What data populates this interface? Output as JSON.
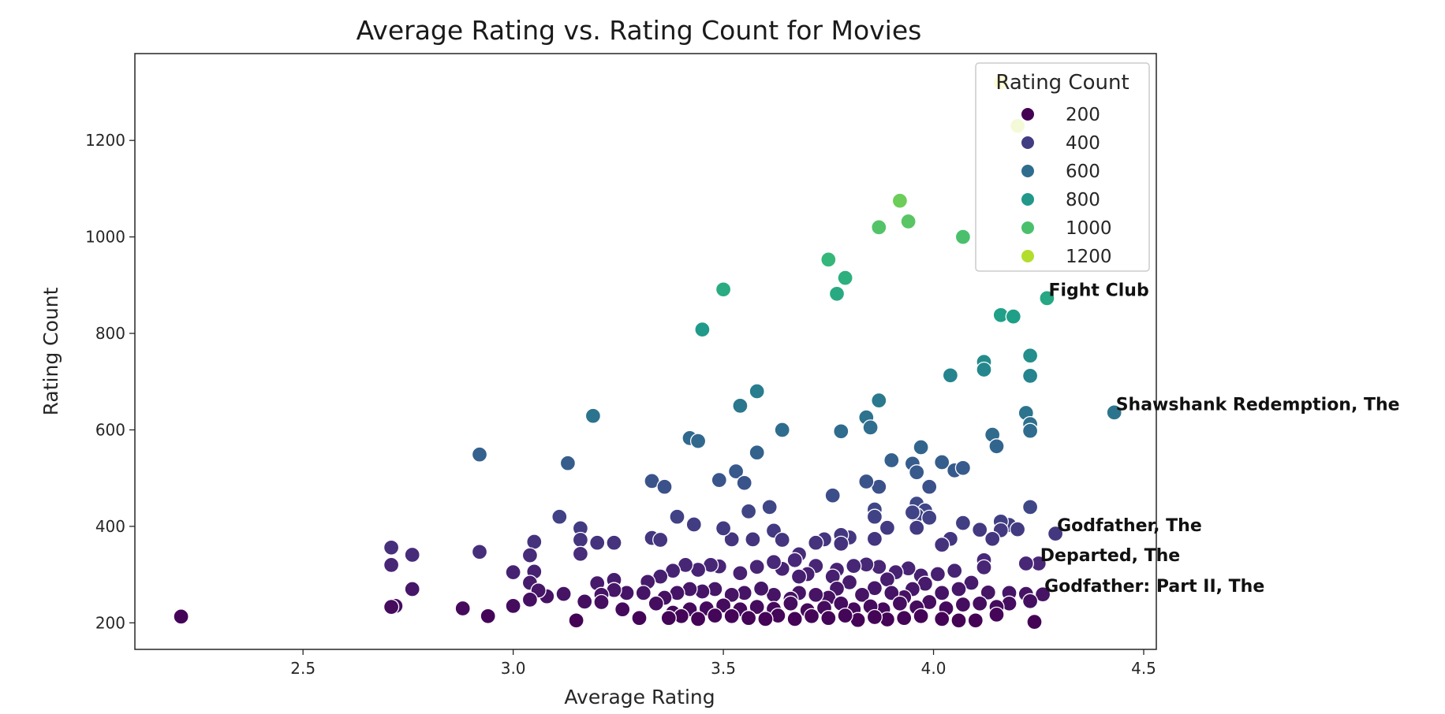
{
  "chart_data": {
    "type": "scatter",
    "title": "Average Rating vs. Rating Count for Movies",
    "xlabel": "Average Rating",
    "ylabel": "Rating Count",
    "xlim": [
      2.1,
      4.53
    ],
    "ylim": [
      145,
      1380
    ],
    "xticks": [
      "2.5",
      "3.0",
      "3.5",
      "4.0",
      "4.5"
    ],
    "yticks": [
      "200",
      "400",
      "600",
      "800",
      "1000",
      "1200"
    ],
    "grid": false,
    "colormap": [
      "#440154",
      "#482878",
      "#3e4a89",
      "#31688e",
      "#26828e",
      "#1f9e89",
      "#35b779",
      "#6ece58",
      "#b5de2b",
      "#fde725"
    ],
    "color_range": [
      200,
      1330
    ],
    "legend": {
      "title": "Rating Count",
      "placement": "top-right",
      "entries": [
        {
          "label": "200",
          "value": 200
        },
        {
          "label": "400",
          "value": 400
        },
        {
          "label": "600",
          "value": 600
        },
        {
          "label": "800",
          "value": 800
        },
        {
          "label": "1000",
          "value": 1000
        },
        {
          "label": "1200",
          "value": 1200
        }
      ]
    },
    "annotations": [
      {
        "text": "Fight Club",
        "x": 4.27,
        "y": 873
      },
      {
        "text": "Shawshank Redemption, The",
        "x": 4.43,
        "y": 636
      },
      {
        "text": "Godfather, The",
        "x": 4.29,
        "y": 385
      },
      {
        "text": "Departed, The",
        "x": 4.25,
        "y": 323
      },
      {
        "text": "Godfather: Part II, The",
        "x": 4.26,
        "y": 259
      }
    ],
    "points": [
      [
        4.16,
        1320
      ],
      [
        4.2,
        1230
      ],
      [
        3.92,
        1075
      ],
      [
        3.87,
        1020
      ],
      [
        3.94,
        1032
      ],
      [
        4.07,
        1000
      ],
      [
        3.75,
        953
      ],
      [
        3.79,
        915
      ],
      [
        3.77,
        882
      ],
      [
        3.5,
        891
      ],
      [
        3.45,
        808
      ],
      [
        4.27,
        873
      ],
      [
        4.16,
        838
      ],
      [
        4.19,
        835
      ],
      [
        4.23,
        754
      ],
      [
        4.12,
        741
      ],
      [
        4.12,
        725
      ],
      [
        4.04,
        713
      ],
      [
        4.23,
        712
      ],
      [
        4.43,
        636
      ],
      [
        4.22,
        635
      ],
      [
        4.23,
        612
      ],
      [
        4.23,
        598
      ],
      [
        4.14,
        590
      ],
      [
        4.15,
        566
      ],
      [
        3.58,
        680
      ],
      [
        3.87,
        661
      ],
      [
        3.54,
        650
      ],
      [
        3.84,
        626
      ],
      [
        3.85,
        605
      ],
      [
        3.78,
        597
      ],
      [
        3.64,
        600
      ],
      [
        3.19,
        629
      ],
      [
        3.42,
        583
      ],
      [
        3.44,
        577
      ],
      [
        3.97,
        564
      ],
      [
        3.9,
        537
      ],
      [
        3.95,
        530
      ],
      [
        3.96,
        512
      ],
      [
        4.02,
        533
      ],
      [
        4.05,
        516
      ],
      [
        4.07,
        521
      ],
      [
        3.99,
        482
      ],
      [
        3.58,
        553
      ],
      [
        3.53,
        514
      ],
      [
        3.55,
        490
      ],
      [
        3.49,
        496
      ],
      [
        3.33,
        494
      ],
      [
        3.36,
        482
      ],
      [
        3.13,
        531
      ],
      [
        2.92,
        549
      ],
      [
        3.87,
        482
      ],
      [
        3.84,
        493
      ],
      [
        3.76,
        464
      ],
      [
        4.23,
        440
      ],
      [
        3.96,
        447
      ],
      [
        3.98,
        433
      ],
      [
        3.96,
        423
      ],
      [
        3.99,
        418
      ],
      [
        3.86,
        435
      ],
      [
        3.86,
        420
      ],
      [
        3.95,
        429
      ],
      [
        3.61,
        440
      ],
      [
        3.56,
        431
      ],
      [
        3.39,
        420
      ],
      [
        3.11,
        420
      ],
      [
        4.29,
        385
      ],
      [
        4.18,
        403
      ],
      [
        4.2,
        394
      ],
      [
        4.16,
        410
      ],
      [
        4.16,
        392
      ],
      [
        4.14,
        374
      ],
      [
        4.11,
        393
      ],
      [
        4.07,
        407
      ],
      [
        4.04,
        374
      ],
      [
        4.02,
        362
      ],
      [
        3.96,
        397
      ],
      [
        3.89,
        397
      ],
      [
        3.8,
        377
      ],
      [
        3.78,
        382
      ],
      [
        3.78,
        364
      ],
      [
        3.86,
        374
      ],
      [
        3.74,
        373
      ],
      [
        3.72,
        366
      ],
      [
        3.68,
        342
      ],
      [
        3.67,
        330
      ],
      [
        3.62,
        391
      ],
      [
        3.64,
        372
      ],
      [
        3.57,
        373
      ],
      [
        3.52,
        373
      ],
      [
        3.5,
        396
      ],
      [
        3.43,
        404
      ],
      [
        3.33,
        376
      ],
      [
        3.35,
        372
      ],
      [
        3.24,
        366
      ],
      [
        3.2,
        366
      ],
      [
        3.16,
        396
      ],
      [
        3.16,
        372
      ],
      [
        3.05,
        368
      ],
      [
        3.04,
        340
      ],
      [
        2.92,
        347
      ],
      [
        2.71,
        356
      ],
      [
        2.71,
        320
      ],
      [
        2.76,
        341
      ],
      [
        3.16,
        343
      ],
      [
        4.25,
        323
      ],
      [
        4.22,
        323
      ],
      [
        4.12,
        330
      ],
      [
        4.12,
        315
      ],
      [
        4.05,
        308
      ],
      [
        4.01,
        301
      ],
      [
        3.97,
        298
      ],
      [
        3.94,
        313
      ],
      [
        3.91,
        305
      ],
      [
        3.89,
        290
      ],
      [
        3.87,
        316
      ],
      [
        3.84,
        321
      ],
      [
        3.81,
        318
      ],
      [
        3.77,
        310
      ],
      [
        3.76,
        296
      ],
      [
        3.72,
        318
      ],
      [
        3.7,
        301
      ],
      [
        3.68,
        296
      ],
      [
        3.64,
        312
      ],
      [
        3.62,
        326
      ],
      [
        3.58,
        316
      ],
      [
        3.54,
        303
      ],
      [
        3.49,
        317
      ],
      [
        3.47,
        320
      ],
      [
        3.44,
        310
      ],
      [
        3.41,
        320
      ],
      [
        3.38,
        308
      ],
      [
        3.35,
        296
      ],
      [
        3.32,
        285
      ],
      [
        3.24,
        289
      ],
      [
        3.2,
        282
      ],
      [
        3.05,
        306
      ],
      [
        3.0,
        305
      ],
      [
        3.04,
        283
      ],
      [
        2.76,
        270
      ],
      [
        4.26,
        259
      ],
      [
        4.22,
        260
      ],
      [
        4.18,
        262
      ],
      [
        4.13,
        263
      ],
      [
        4.09,
        283
      ],
      [
        4.06,
        270
      ],
      [
        4.02,
        262
      ],
      [
        3.98,
        281
      ],
      [
        3.95,
        270
      ],
      [
        3.93,
        253
      ],
      [
        3.9,
        262
      ],
      [
        3.86,
        272
      ],
      [
        3.83,
        258
      ],
      [
        3.8,
        284
      ],
      [
        3.77,
        271
      ],
      [
        3.75,
        252
      ],
      [
        3.72,
        258
      ],
      [
        3.68,
        262
      ],
      [
        3.66,
        250
      ],
      [
        3.62,
        258
      ],
      [
        3.59,
        271
      ],
      [
        3.55,
        262
      ],
      [
        3.52,
        258
      ],
      [
        3.48,
        270
      ],
      [
        3.45,
        265
      ],
      [
        3.42,
        270
      ],
      [
        3.39,
        262
      ],
      [
        3.36,
        252
      ],
      [
        3.31,
        262
      ],
      [
        3.27,
        262
      ],
      [
        3.24,
        268
      ],
      [
        3.21,
        258
      ],
      [
        3.17,
        244
      ],
      [
        3.12,
        260
      ],
      [
        3.08,
        255
      ],
      [
        3.06,
        267
      ],
      [
        3.04,
        248
      ],
      [
        3.0,
        235
      ],
      [
        2.88,
        230
      ],
      [
        2.72,
        235
      ],
      [
        4.23,
        245
      ],
      [
        4.18,
        240
      ],
      [
        4.15,
        233
      ],
      [
        4.11,
        240
      ],
      [
        4.07,
        238
      ],
      [
        4.03,
        230
      ],
      [
        3.99,
        243
      ],
      [
        3.96,
        232
      ],
      [
        3.92,
        240
      ],
      [
        3.88,
        228
      ],
      [
        3.85,
        234
      ],
      [
        3.81,
        228
      ],
      [
        3.78,
        240
      ],
      [
        3.74,
        231
      ],
      [
        3.7,
        226
      ],
      [
        3.66,
        240
      ],
      [
        3.62,
        229
      ],
      [
        3.58,
        233
      ],
      [
        3.54,
        228
      ],
      [
        3.5,
        236
      ],
      [
        3.46,
        230
      ],
      [
        3.42,
        228
      ],
      [
        3.38,
        221
      ],
      [
        3.34,
        240
      ],
      [
        3.26,
        228
      ],
      [
        3.21,
        243
      ],
      [
        2.94,
        214
      ],
      [
        2.71,
        233
      ],
      [
        4.24,
        202
      ],
      [
        4.15,
        217
      ],
      [
        4.1,
        205
      ],
      [
        4.06,
        205
      ],
      [
        4.02,
        208
      ],
      [
        3.97,
        214
      ],
      [
        3.93,
        210
      ],
      [
        3.89,
        207
      ],
      [
        3.86,
        212
      ],
      [
        3.82,
        206
      ],
      [
        3.79,
        215
      ],
      [
        3.75,
        210
      ],
      [
        3.71,
        214
      ],
      [
        3.67,
        208
      ],
      [
        3.63,
        215
      ],
      [
        3.6,
        208
      ],
      [
        3.56,
        210
      ],
      [
        3.52,
        214
      ],
      [
        3.48,
        215
      ],
      [
        3.44,
        208
      ],
      [
        3.4,
        214
      ],
      [
        3.37,
        210
      ],
      [
        3.3,
        210
      ],
      [
        3.15,
        205
      ],
      [
        2.21,
        213
      ]
    ]
  }
}
